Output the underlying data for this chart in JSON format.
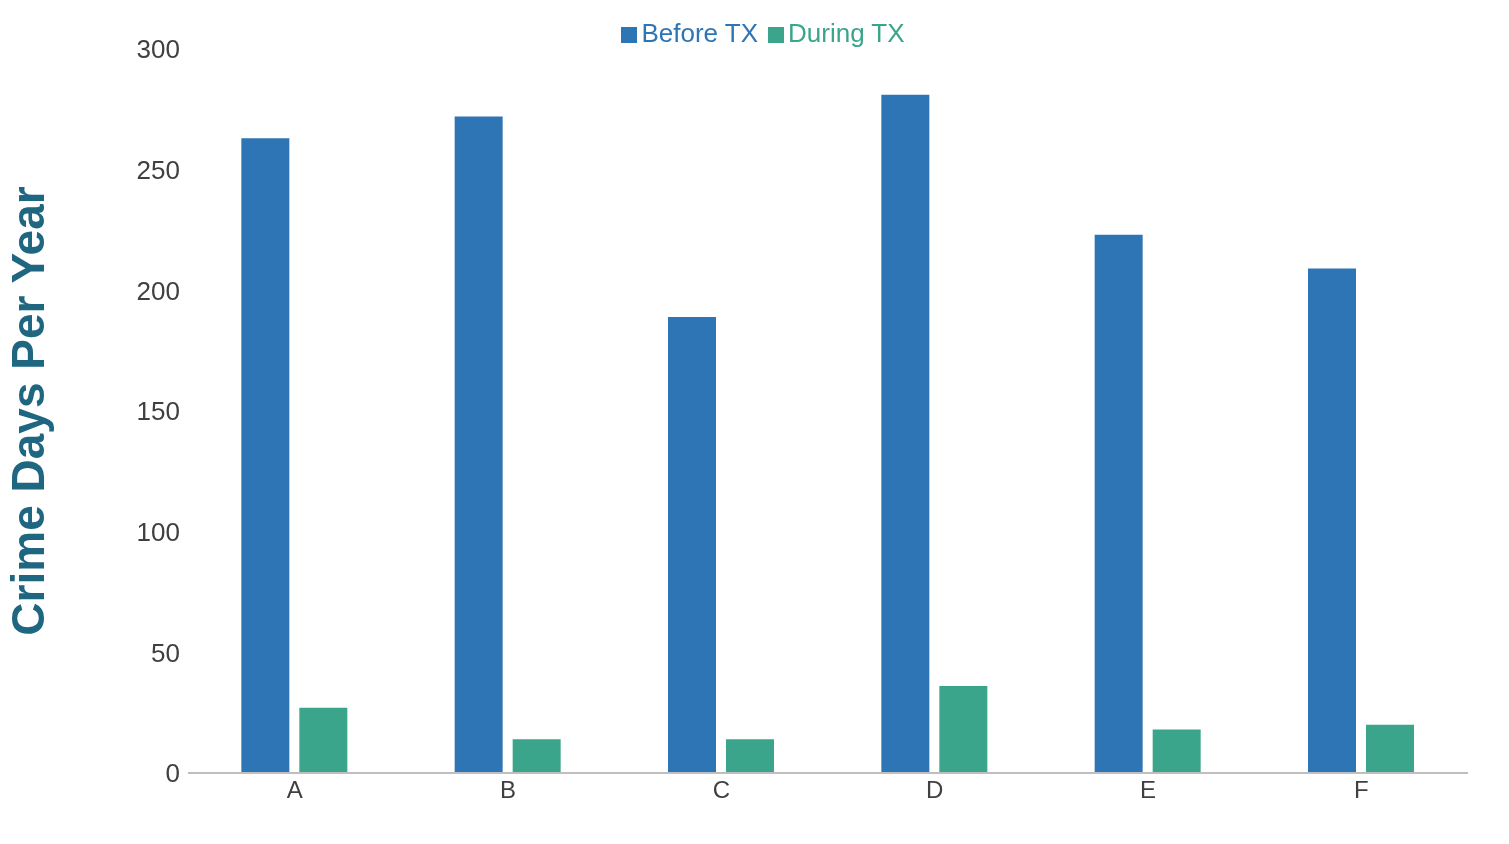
{
  "chart_data": {
    "type": "bar",
    "ylabel": "Crime Days Per Year",
    "categories": [
      "A",
      "B",
      "C",
      "D",
      "E",
      "F"
    ],
    "series": [
      {
        "name": "Before TX",
        "color": "#2e75b6",
        "values": [
          263,
          272,
          189,
          281,
          223,
          209
        ]
      },
      {
        "name": "During TX",
        "color": "#3aa58a",
        "values": [
          27,
          14,
          14,
          36,
          18,
          20
        ]
      }
    ],
    "ylim": [
      0,
      300
    ],
    "yticks": [
      0,
      50,
      100,
      150,
      200,
      250,
      300
    ],
    "grid": false,
    "legend": "top"
  }
}
